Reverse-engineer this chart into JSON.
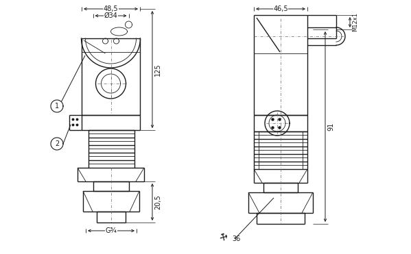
{
  "bg_color": "#ffffff",
  "line_color": "#1a1a1a",
  "lw": 1.0,
  "tlw": 0.6,
  "dim_color": "#1a1a1a",
  "font_size": 7,
  "fig_width": 5.99,
  "fig_height": 3.71,
  "annotations": {
    "dim_48_5": "48,5",
    "dim_34": "Ø34",
    "dim_125": "125",
    "dim_20_5": "20,5",
    "dim_g3_4": "G¾",
    "dim_46_5": "46,5",
    "dim_m12x1": "M12x1",
    "dim_91": "91",
    "dim_36": "36",
    "label_1": "1",
    "label_2": "2"
  }
}
